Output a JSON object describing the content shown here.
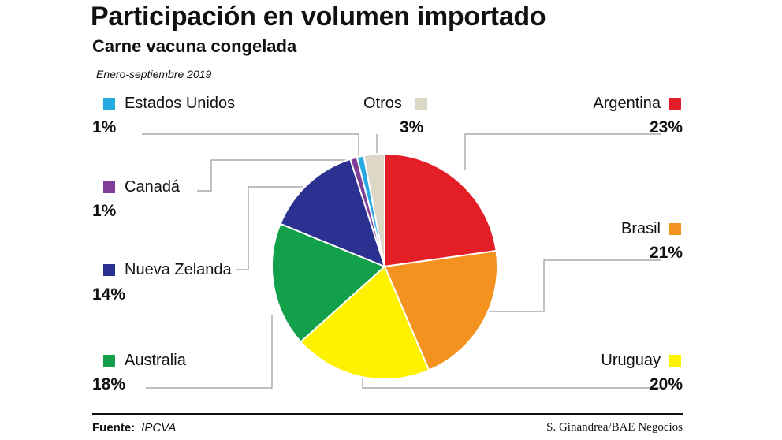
{
  "title": "Participación en volumen importado",
  "subtitle": "Carne vacuna congelada",
  "period": "Enero-septiembre 2019",
  "source_label": "Fuente:",
  "source": "IPCVA",
  "credit": "S. Ginandrea/BAE Negocios",
  "chart_data": {
    "type": "pie",
    "title": "Participación en volumen importado",
    "subtitle": "Carne vacuna congelada",
    "categories": [
      "Argentina",
      "Brasil",
      "Uruguay",
      "Australia",
      "Nueva Zelanda",
      "Canadá",
      "Estados Unidos",
      "Otros"
    ],
    "values": [
      23,
      21,
      20,
      18,
      14,
      1,
      1,
      3
    ],
    "labels": [
      "23%",
      "21%",
      "20%",
      "18%",
      "14%",
      "1%",
      "1%",
      "3%"
    ],
    "colors": [
      "#e41e26",
      "#f4921f",
      "#fff200",
      "#13a04a",
      "#2b3190",
      "#7f3f98",
      "#27aae1",
      "#ddd8c6"
    ],
    "start": "top",
    "direction": "clockwise"
  }
}
